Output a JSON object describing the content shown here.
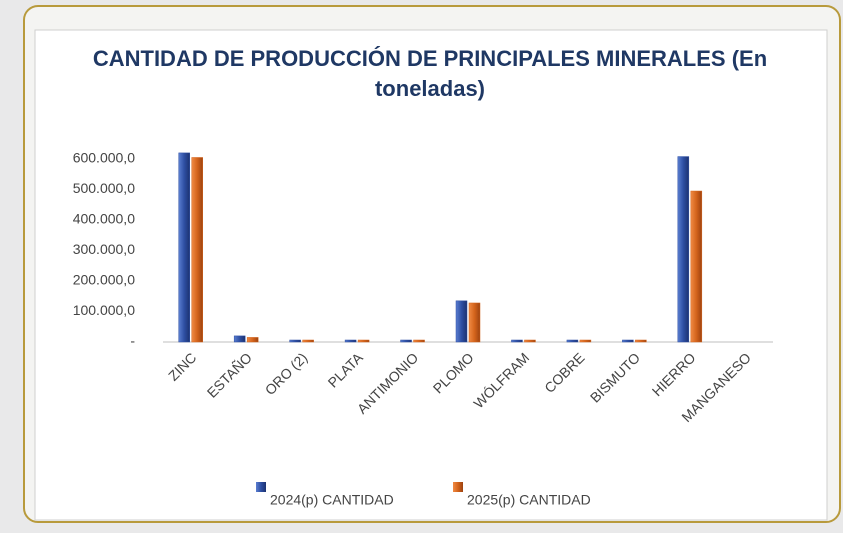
{
  "chart_data": {
    "type": "bar",
    "title": "CANTIDAD DE PRODUCCIÓN DE PRINCIPALES MINERALES (En toneladas)",
    "categories": [
      "ZINC",
      "ESTAÑO",
      "ORO (2)",
      "PLATA",
      "ANTIMONIO",
      "PLOMO",
      "WÓLFRAM",
      "COBRE",
      "BISMUTO",
      "HIERRO",
      "MANGANESO"
    ],
    "series": [
      {
        "name": "2024(p) CANTIDAD",
        "color": "#2e4fa3",
        "values": [
          620000,
          20000,
          2000,
          2000,
          2000,
          135000,
          2000,
          2000,
          2000,
          608000,
          null
        ]
      },
      {
        "name": "2025(p) CANTIDAD",
        "color": "#d4641c",
        "values": [
          605000,
          15000,
          2000,
          2000,
          2000,
          128000,
          2000,
          2000,
          2000,
          495000,
          null
        ]
      }
    ],
    "ylim": [
      0,
      600000
    ],
    "yticks": [
      {
        "value": 0,
        "label": "-"
      },
      {
        "value": 100000,
        "label": "100.000,0"
      },
      {
        "value": 200000,
        "label": "200.000,0"
      },
      {
        "value": 300000,
        "label": "300.000,0"
      },
      {
        "value": 400000,
        "label": "400.000,0"
      },
      {
        "value": 500000,
        "label": "500.000,0"
      },
      {
        "value": 600000,
        "label": "600.000,0"
      }
    ]
  }
}
